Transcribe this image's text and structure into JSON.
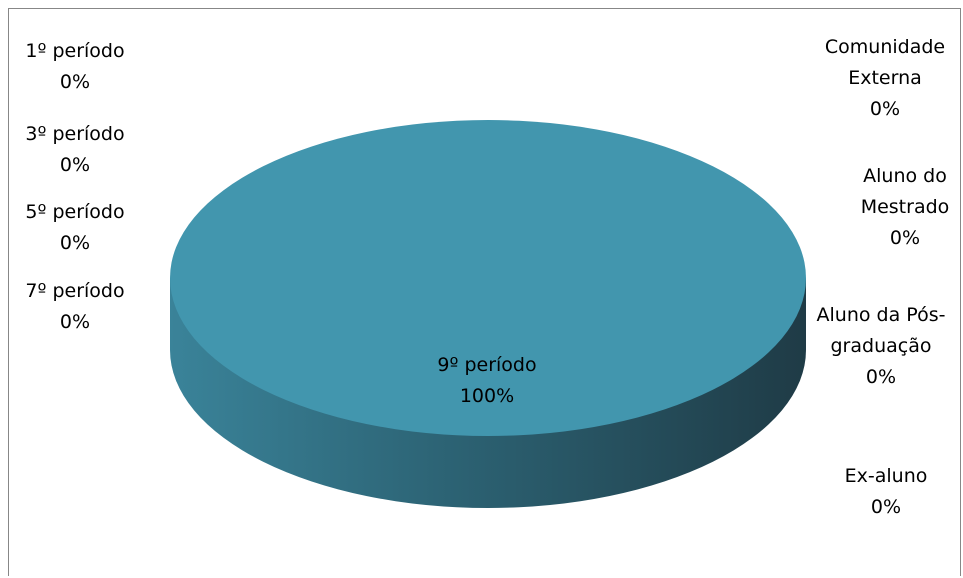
{
  "chart_data": {
    "type": "pie",
    "title": "",
    "legend": "none",
    "three_d": true,
    "colors": {
      "top": "#4296ae",
      "side_light": "#3a8399",
      "side_dark": "#1f3b46",
      "frame": "#878787"
    },
    "slices": [
      {
        "label": "1º período",
        "value": 0,
        "pct": "0%"
      },
      {
        "label": "3º período",
        "value": 0,
        "pct": "0%"
      },
      {
        "label": "5º período",
        "value": 0,
        "pct": "0%"
      },
      {
        "label": "7º período",
        "value": 0,
        "pct": "0%"
      },
      {
        "label": "9º período",
        "value": 100,
        "pct": "100%"
      },
      {
        "label": "Ex-aluno",
        "value": 0,
        "pct": "0%"
      },
      {
        "label": "Aluno da Pós-graduação",
        "value": 0,
        "pct": "0%"
      },
      {
        "label": "Aluno do Mestrado",
        "value": 0,
        "pct": "0%"
      },
      {
        "label": "Comunidade Externa",
        "value": 0,
        "pct": "0%"
      }
    ]
  },
  "labels": {
    "p1": {
      "line1": "1º período",
      "line2": "0%"
    },
    "p3": {
      "line1": "3º período",
      "line2": "0%"
    },
    "p5": {
      "line1": "5º período",
      "line2": "0%"
    },
    "p7": {
      "line1": "7º período",
      "line2": "0%"
    },
    "p9": {
      "line1": "9º período",
      "line2": "100%"
    },
    "ex": {
      "line1": "Ex-aluno",
      "line2": "0%"
    },
    "pos": {
      "line1": "Aluno da Pós-",
      "line2": "graduação",
      "line3": "0%"
    },
    "mestrado": {
      "line1": "Aluno do",
      "line2": "Mestrado",
      "line3": "0%"
    },
    "externa": {
      "line1": "Comunidade",
      "line2": "Externa",
      "line3": "0%"
    }
  }
}
